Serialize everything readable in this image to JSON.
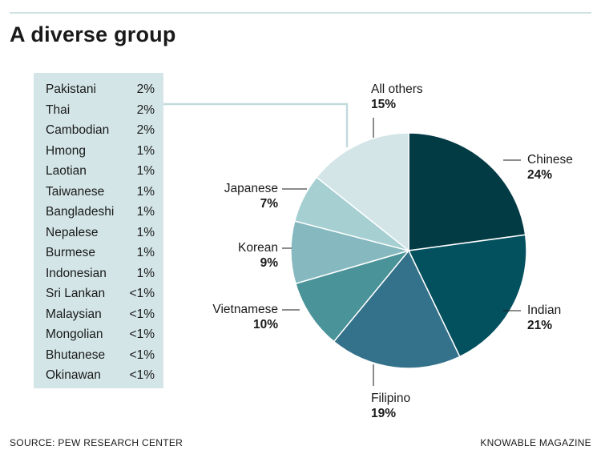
{
  "title": "A diverse group",
  "footer": {
    "source": "SOURCE: PEW RESEARCH CENTER",
    "credit": "KNOWABLE MAGAZINE"
  },
  "chart_data": {
    "type": "pie",
    "title": "A diverse group",
    "slices": [
      {
        "label": "Chinese",
        "value": 24,
        "display": "24%",
        "color": "#033b45"
      },
      {
        "label": "Indian",
        "value": 21,
        "display": "21%",
        "color": "#03505f"
      },
      {
        "label": "Filipino",
        "value": 19,
        "display": "19%",
        "color": "#33728a"
      },
      {
        "label": "Vietnamese",
        "value": 10,
        "display": "10%",
        "color": "#4a9399"
      },
      {
        "label": "Korean",
        "value": 9,
        "display": "9%",
        "color": "#85b9bf"
      },
      {
        "label": "Japanese",
        "value": 7,
        "display": "7%",
        "color": "#a6cfd2"
      },
      {
        "label": "All others",
        "value": 15,
        "display": "15%",
        "color": "#d3e5e7"
      }
    ],
    "all_others_breakdown": [
      {
        "label": "Pakistani",
        "value": "2%"
      },
      {
        "label": "Thai",
        "value": "2%"
      },
      {
        "label": "Cambodian",
        "value": "2%"
      },
      {
        "label": "Hmong",
        "value": "1%"
      },
      {
        "label": "Laotian",
        "value": "1%"
      },
      {
        "label": "Taiwanese",
        "value": "1%"
      },
      {
        "label": "Bangladeshi",
        "value": "1%"
      },
      {
        "label": "Nepalese",
        "value": "1%"
      },
      {
        "label": "Burmese",
        "value": "1%"
      },
      {
        "label": "Indonesian",
        "value": "1%"
      },
      {
        "label": "Sri Lankan",
        "value": "<1%"
      },
      {
        "label": "Malaysian",
        "value": "<1%"
      },
      {
        "label": "Mongolian",
        "value": "<1%"
      },
      {
        "label": "Bhutanese",
        "value": "<1%"
      },
      {
        "label": "Okinawan",
        "value": "<1%"
      }
    ]
  }
}
